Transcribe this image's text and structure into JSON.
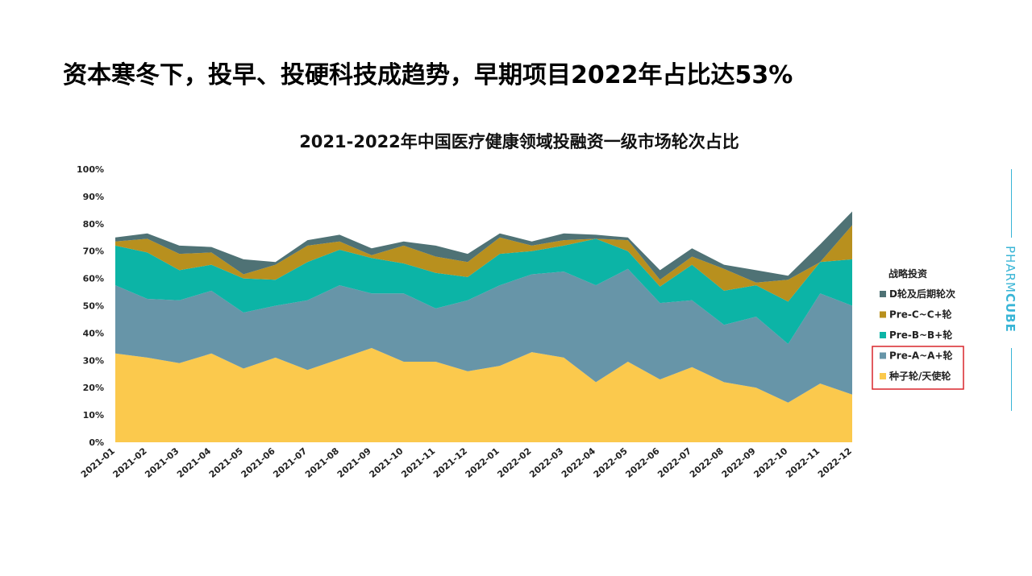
{
  "headline": "资本寒冬下，投早、投硬科技成趋势，早期项目2022年占比达53%",
  "brand": {
    "light": "PHARM",
    "bold": "CUBE",
    "color": "#39b5d6"
  },
  "chart_data": {
    "type": "area",
    "stacked": true,
    "title": "2021-2022年中国医疗健康领域投融资一级市场轮次占比",
    "legend_title": "战略投资",
    "legend_position": "right",
    "highlighted_legend": [
      "Pre-A~A+轮",
      "种子轮/天使轮"
    ],
    "ylim": [
      0,
      100
    ],
    "yticks": [
      "0%",
      "10%",
      "20%",
      "30%",
      "40%",
      "50%",
      "60%",
      "70%",
      "80%",
      "90%",
      "100%"
    ],
    "categories": [
      "2021-01",
      "2021-02",
      "2021-03",
      "2021-04",
      "2021-05",
      "2021-06",
      "2021-07",
      "2021-08",
      "2021-09",
      "2021-10",
      "2021-11",
      "2021-12",
      "2022-01",
      "2022-02",
      "2022-03",
      "2022-04",
      "2022-05",
      "2022-06",
      "2022-07",
      "2022-08",
      "2022-09",
      "2022-10",
      "2022-11",
      "2022-12"
    ],
    "series": [
      {
        "name": "种子轮/天使轮",
        "color": "#fbc94d",
        "values": [
          32.5,
          31,
          29,
          32.5,
          27,
          31,
          26.5,
          30.5,
          34.5,
          29.5,
          29.5,
          26,
          28,
          33,
          31,
          22,
          29.5,
          23,
          27.5,
          22,
          20,
          14.5,
          21.5,
          17.5
        ]
      },
      {
        "name": "Pre-A~A+轮",
        "color": "#6795a8",
        "values": [
          25,
          21.5,
          23,
          23,
          20.5,
          19,
          25.5,
          27,
          20,
          25,
          19.5,
          26,
          29.5,
          28.5,
          31.5,
          35.5,
          34,
          28,
          24.5,
          21,
          26,
          21.5,
          33,
          32.5
        ]
      },
      {
        "name": "Pre-B~B+轮",
        "color": "#0cb4a6",
        "values": [
          14.5,
          17,
          11,
          9.5,
          12.5,
          9.5,
          14,
          13,
          13,
          11,
          13,
          8.5,
          11.5,
          8.5,
          9.5,
          17,
          6.5,
          6,
          13,
          12.5,
          11.5,
          15.5,
          11.5,
          17
        ]
      },
      {
        "name": "Pre-C~C+轮",
        "color": "#b8901e",
        "values": [
          1.5,
          5,
          6,
          4.5,
          1.5,
          5.5,
          6,
          3,
          1,
          6.5,
          6,
          5.5,
          6,
          2,
          2,
          0,
          4,
          2.5,
          3,
          8,
          1,
          8,
          0,
          12.5
        ]
      },
      {
        "name": "D轮及后期轮次",
        "color": "#4f7275",
        "values": [
          1.5,
          2,
          3,
          2,
          5.5,
          1,
          2,
          2.5,
          2.5,
          1.5,
          4,
          3,
          1.5,
          1.5,
          2.5,
          1.5,
          1,
          3.5,
          3,
          1.5,
          4.5,
          1.5,
          6.5,
          5
        ]
      }
    ],
    "legend_order": [
      "D轮及后期轮次",
      "Pre-C~C+轮",
      "Pre-B~B+轮",
      "Pre-A~A+轮",
      "种子轮/天使轮"
    ]
  }
}
